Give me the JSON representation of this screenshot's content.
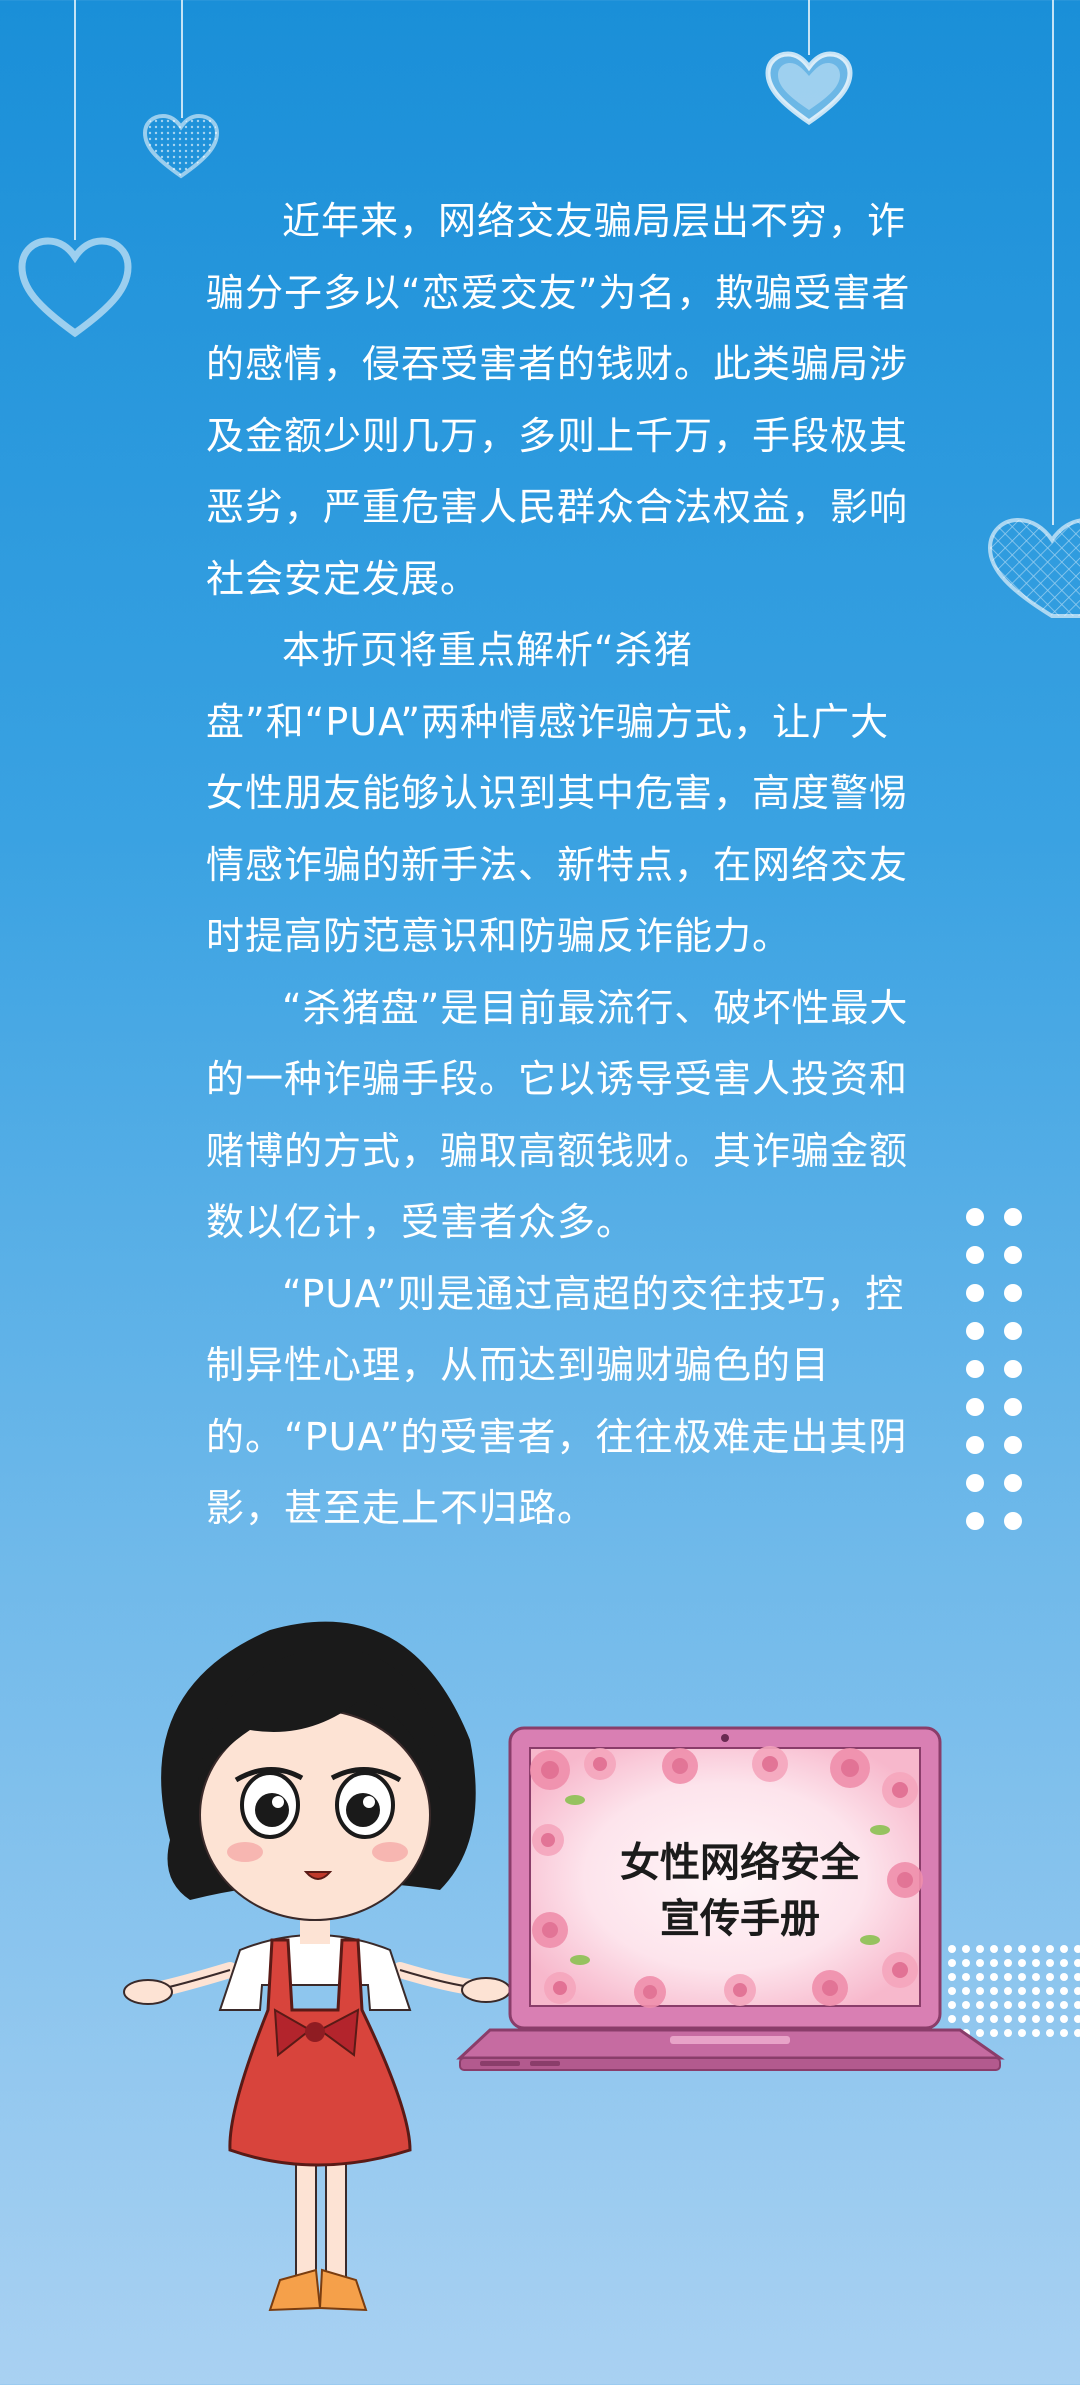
{
  "article": {
    "paragraphs": [
      "近年来，网络交友骗局层出不穷，诈骗分子多以“恋爱交友”为名，欺骗受害者的感情，侵吞受害者的钱财。此类骗局涉及金额少则几万，多则上千万，手段极其恶劣，严重危害人民群众合法权益，影响社会安定发展。",
      "本折页将重点解析“杀猪盘”和“PUA”两种情感诈骗方式，让广大女性朋友能够认识到其中危害，高度警惕情感诈骗的新手法、新特点，在网络交友时提高防范意识和防骗反诈能力。",
      "“杀猪盘”是目前最流行、破坏性最大的一种诈骗手段。它以诱导受害人投资和赌博的方式，骗取高额钱财。其诈骗金额数以亿计，受害者众多。",
      "“PUA”则是通过高超的交往技巧，控制异性心理，从而达到骗财骗色的目的。“PUA”的受害者，往往极难走出其阴影，甚至走上不归路。"
    ]
  },
  "illustration": {
    "laptop_title_line1": "女性网络安全",
    "laptop_title_line2": "宣传手册"
  },
  "colors": {
    "background_top": "#1a8fd8",
    "background_bottom": "#a9d1f2",
    "text": "#ffffff",
    "laptop_frame": "#d97fb3",
    "dress": "#d8443c"
  },
  "icons": [
    "heart-icon",
    "dot-pattern",
    "girl-illustration",
    "laptop-illustration"
  ]
}
